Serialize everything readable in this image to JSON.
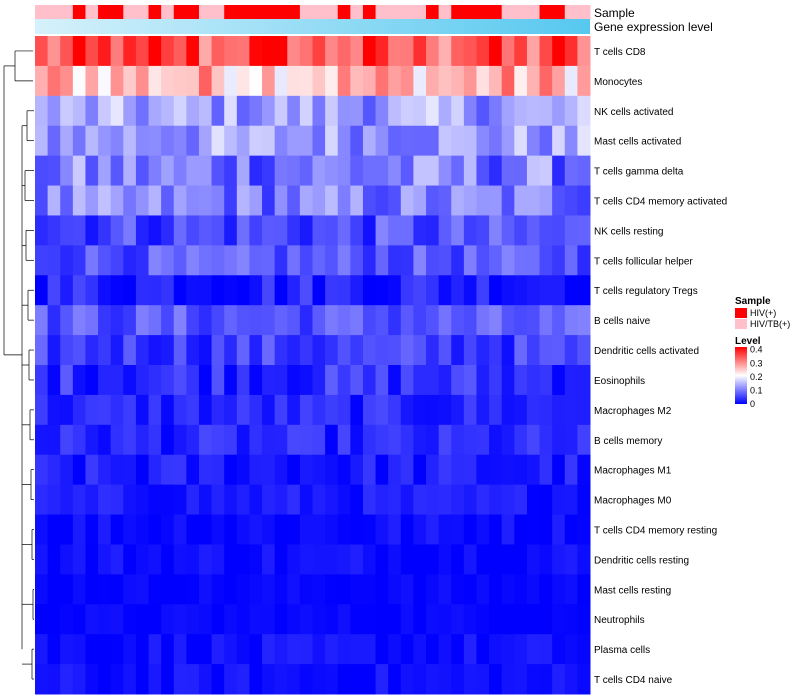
{
  "chart_data": {
    "type": "heatmap",
    "title": "",
    "n_samples": 44,
    "annotations": [
      {
        "label": "Sample",
        "type": "categorical"
      },
      {
        "label": "Gene expression level",
        "type": "gradient",
        "colors": [
          "#d6f1fb",
          "#56c8ef"
        ]
      }
    ],
    "sample_groups": [
      1,
      1,
      1,
      0,
      1,
      0,
      0,
      1,
      1,
      0,
      1,
      0,
      0,
      1,
      1,
      0,
      0,
      0,
      0,
      0,
      0,
      1,
      1,
      1,
      0,
      1,
      0,
      1,
      1,
      1,
      1,
      0,
      1,
      0,
      0,
      0,
      0,
      1,
      1,
      1,
      0,
      0,
      1,
      1
    ],
    "rows": [
      "T cells CD8",
      "Monocytes",
      "NK cells activated",
      "Mast cells activated",
      "T cells gamma delta",
      "T cells CD4 memory activated",
      "NK cells resting",
      "T cells follicular helper",
      "T cells regulatory  Tregs",
      "B cells naive",
      "Dendritic cells activated",
      "Eosinophils",
      "Macrophages M2",
      "B cells memory",
      "Macrophages M1",
      "Macrophages M0",
      "T cells CD4 memory resting",
      "Dendritic cells resting",
      "Mast cells resting",
      "Neutrophils",
      "Plasma cells",
      "T cells CD4 naive"
    ],
    "row_means": [
      0.33,
      0.27,
      0.13,
      0.13,
      0.1,
      0.1,
      0.06,
      0.07,
      0.03,
      0.07,
      0.05,
      0.04,
      0.03,
      0.03,
      0.02,
      0.02,
      0.01,
      0.01,
      0.005,
      0.005,
      0.01,
      0.01
    ],
    "row_spread": [
      0.08,
      0.08,
      0.06,
      0.06,
      0.07,
      0.06,
      0.05,
      0.04,
      0.04,
      0.04,
      0.04,
      0.04,
      0.03,
      0.03,
      0.03,
      0.02,
      0.02,
      0.02,
      0.01,
      0.01,
      0.02,
      0.02
    ],
    "legend": {
      "sample": {
        "title": "Sample",
        "entries": [
          "HIV(+)",
          "HIV/TB(+)"
        ],
        "colors": [
          "#ff0000",
          "#ffc0cb"
        ]
      },
      "level": {
        "title": "Level",
        "ticks": [
          "0.4",
          "0.3",
          "0.2",
          "0.1",
          "0"
        ],
        "tick_values": [
          0.4,
          0.3,
          0.2,
          0.1,
          0
        ],
        "range": [
          0,
          0.42
        ]
      }
    },
    "colorscale": [
      "#0000ff",
      "#ffffff",
      "#ff0000"
    ]
  }
}
